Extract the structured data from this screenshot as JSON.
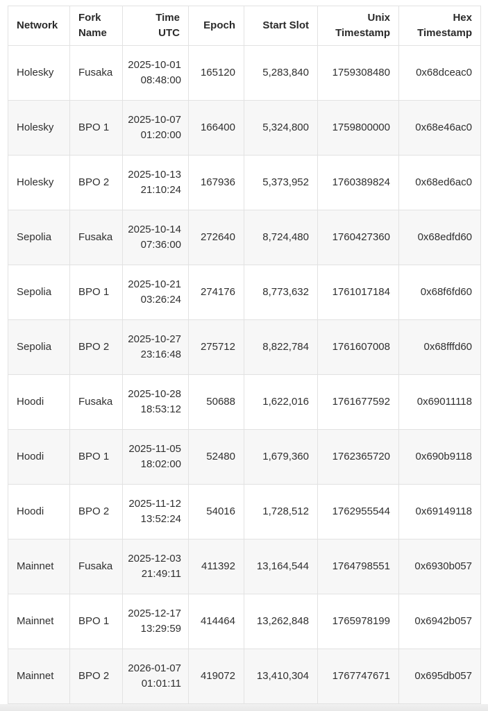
{
  "table": {
    "headers": [
      {
        "key": "network",
        "label": "Network"
      },
      {
        "key": "fork",
        "label": "Fork Name"
      },
      {
        "key": "time",
        "label": "Time UTC"
      },
      {
        "key": "epoch",
        "label": "Epoch"
      },
      {
        "key": "slot",
        "label": "Start Slot"
      },
      {
        "key": "unix",
        "label": "Unix Timestamp"
      },
      {
        "key": "hex",
        "label": "Hex Timestamp"
      }
    ],
    "rows": [
      {
        "network": "Holesky",
        "fork": "Fusaka",
        "time": "2025-10-01 08:48:00",
        "epoch": "165120",
        "slot": "5,283,840",
        "unix": "1759308480",
        "hex": "0x68dceac0"
      },
      {
        "network": "Holesky",
        "fork": "BPO 1",
        "time": "2025-10-07 01:20:00",
        "epoch": "166400",
        "slot": "5,324,800",
        "unix": "1759800000",
        "hex": "0x68e46ac0"
      },
      {
        "network": "Holesky",
        "fork": "BPO 2",
        "time": "2025-10-13 21:10:24",
        "epoch": "167936",
        "slot": "5,373,952",
        "unix": "1760389824",
        "hex": "0x68ed6ac0"
      },
      {
        "network": "Sepolia",
        "fork": "Fusaka",
        "time": "2025-10-14 07:36:00",
        "epoch": "272640",
        "slot": "8,724,480",
        "unix": "1760427360",
        "hex": "0x68edfd60"
      },
      {
        "network": "Sepolia",
        "fork": "BPO 1",
        "time": "2025-10-21 03:26:24",
        "epoch": "274176",
        "slot": "8,773,632",
        "unix": "1761017184",
        "hex": "0x68f6fd60"
      },
      {
        "network": "Sepolia",
        "fork": "BPO 2",
        "time": "2025-10-27 23:16:48",
        "epoch": "275712",
        "slot": "8,822,784",
        "unix": "1761607008",
        "hex": "0x68fffd60"
      },
      {
        "network": "Hoodi",
        "fork": "Fusaka",
        "time": "2025-10-28 18:53:12",
        "epoch": "50688",
        "slot": "1,622,016",
        "unix": "1761677592",
        "hex": "0x69011118"
      },
      {
        "network": "Hoodi",
        "fork": "BPO 1",
        "time": "2025-11-05 18:02:00",
        "epoch": "52480",
        "slot": "1,679,360",
        "unix": "1762365720",
        "hex": "0x690b9118"
      },
      {
        "network": "Hoodi",
        "fork": "BPO 2",
        "time": "2025-11-12 13:52:24",
        "epoch": "54016",
        "slot": "1,728,512",
        "unix": "1762955544",
        "hex": "0x69149118"
      },
      {
        "network": "Mainnet",
        "fork": "Fusaka",
        "time": "2025-12-03 21:49:11",
        "epoch": "411392",
        "slot": "13,164,544",
        "unix": "1764798551",
        "hex": "0x6930b057"
      },
      {
        "network": "Mainnet",
        "fork": "BPO 1",
        "time": "2025-12-17 13:29:59",
        "epoch": "414464",
        "slot": "13,262,848",
        "unix": "1765978199",
        "hex": "0x6942b057"
      },
      {
        "network": "Mainnet",
        "fork": "BPO 2",
        "time": "2026-01-07 01:01:11",
        "epoch": "419072",
        "slot": "13,410,304",
        "unix": "1767747671",
        "hex": "0x695db057"
      }
    ]
  }
}
